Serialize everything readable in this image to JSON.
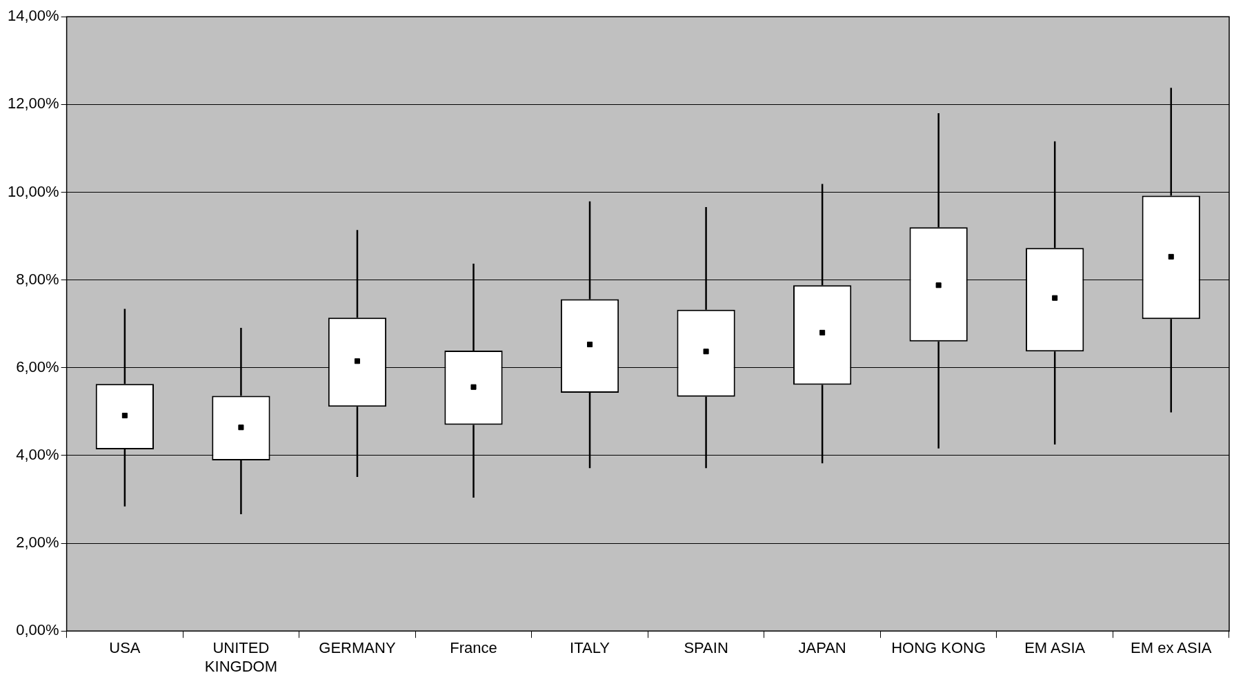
{
  "chart_data": {
    "type": "box",
    "categories": [
      "USA",
      "UNITED KINGDOM",
      "GERMANY",
      "France",
      "ITALY",
      "SPAIN",
      "JAPAN",
      "HONG KONG",
      "EM ASIA",
      "EM ex ASIA"
    ],
    "boxes": [
      {
        "low": 2.84,
        "q1": 4.14,
        "median": 4.91,
        "q3": 5.63,
        "high": 7.34
      },
      {
        "low": 2.66,
        "q1": 3.89,
        "median": 4.64,
        "q3": 5.36,
        "high": 6.91
      },
      {
        "low": 3.51,
        "q1": 5.11,
        "median": 6.15,
        "q3": 7.14,
        "high": 9.14
      },
      {
        "low": 3.04,
        "q1": 4.7,
        "median": 5.56,
        "q3": 6.39,
        "high": 8.37
      },
      {
        "low": 3.71,
        "q1": 5.43,
        "median": 6.53,
        "q3": 7.56,
        "high": 9.79
      },
      {
        "low": 3.71,
        "q1": 5.34,
        "median": 6.37,
        "q3": 7.32,
        "high": 9.66
      },
      {
        "low": 3.82,
        "q1": 5.61,
        "median": 6.8,
        "q3": 7.88,
        "high": 10.19
      },
      {
        "low": 4.16,
        "q1": 6.6,
        "median": 7.88,
        "q3": 9.2,
        "high": 11.8
      },
      {
        "low": 4.25,
        "q1": 6.37,
        "median": 7.59,
        "q3": 8.73,
        "high": 11.16
      },
      {
        "low": 4.98,
        "q1": 7.11,
        "median": 8.53,
        "q3": 9.92,
        "high": 12.38
      }
    ],
    "color": "#000000",
    "marker": "square",
    "ylim": [
      0,
      14
    ],
    "yticks": [
      {
        "value": 0,
        "label": "0,00%"
      },
      {
        "value": 2,
        "label": "2,00%"
      },
      {
        "value": 4,
        "label": "4,00%"
      },
      {
        "value": 6,
        "label": "6,00%"
      },
      {
        "value": 8,
        "label": "8,00%"
      },
      {
        "value": 10,
        "label": "10,00%"
      },
      {
        "value": 12,
        "label": "12,00%"
      },
      {
        "value": 14,
        "label": "14,00%"
      }
    ],
    "grid": "y",
    "legend": false
  }
}
